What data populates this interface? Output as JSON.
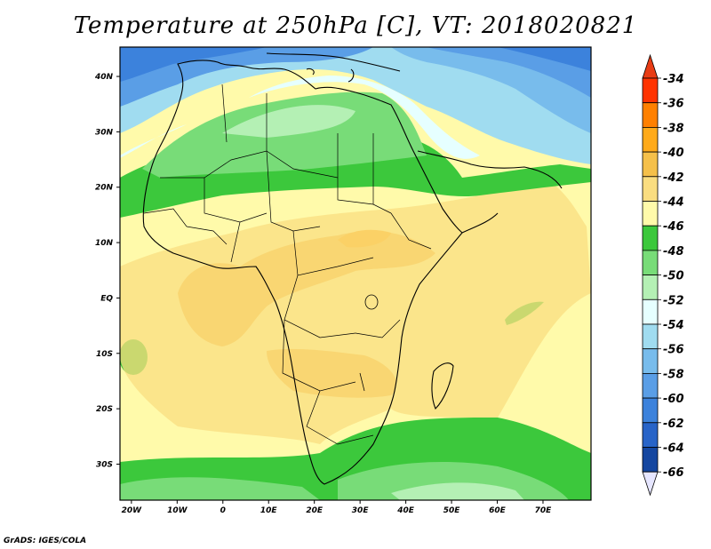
{
  "title": "Temperature at 250hPa [C], VT: 2018020821",
  "credit": "GrADS: IGES/COLA",
  "map": {
    "lat_labels": [
      {
        "label": "40N",
        "lat": 40
      },
      {
        "label": "30N",
        "lat": 30
      },
      {
        "label": "20N",
        "lat": 20
      },
      {
        "label": "10N",
        "lat": 10
      },
      {
        "label": "EQ",
        "lat": 0
      },
      {
        "label": "10S",
        "lat": -10
      },
      {
        "label": "20S",
        "lat": -20
      },
      {
        "label": "30S",
        "lat": -30
      }
    ],
    "lon_labels": [
      {
        "label": "20W",
        "lon": -20
      },
      {
        "label": "10W",
        "lon": -10
      },
      {
        "label": "0",
        "lon": 0
      },
      {
        "label": "10E",
        "lon": 10
      },
      {
        "label": "20E",
        "lon": 20
      },
      {
        "label": "30E",
        "lon": 30
      },
      {
        "label": "40E",
        "lon": 40
      },
      {
        "label": "50E",
        "lon": 50
      },
      {
        "label": "60E",
        "lon": 60
      },
      {
        "label": "70E",
        "lon": 70
      }
    ]
  },
  "legend": {
    "levels": [
      {
        "label": "-34",
        "color": "#ff3300"
      },
      {
        "label": "-36",
        "color": "#ff8000"
      },
      {
        "label": "-38",
        "color": "#ffaa1a"
      },
      {
        "label": "-40",
        "color": "#f5c04a"
      },
      {
        "label": "-42",
        "color": "#fadd80"
      },
      {
        "label": "-44",
        "color": "#fffaaa"
      },
      {
        "label": "-46",
        "color": "#3cc83c"
      },
      {
        "label": "-48",
        "color": "#78dc78"
      },
      {
        "label": "-50",
        "color": "#b4f0b4"
      },
      {
        "label": "-52",
        "color": "#e6ffff"
      },
      {
        "label": "-54",
        "color": "#a0dcf0"
      },
      {
        "label": "-56",
        "color": "#78bcec"
      },
      {
        "label": "-58",
        "color": "#5a9ee6"
      },
      {
        "label": "-60",
        "color": "#3c82dc"
      },
      {
        "label": "-62",
        "color": "#2864c8"
      },
      {
        "label": "-64",
        "color": "#1446a0"
      },
      {
        "label": "-66",
        "color": "#0a1e78"
      }
    ],
    "top_color": "#e83c14",
    "bottom_color": "#e6e6ff"
  }
}
